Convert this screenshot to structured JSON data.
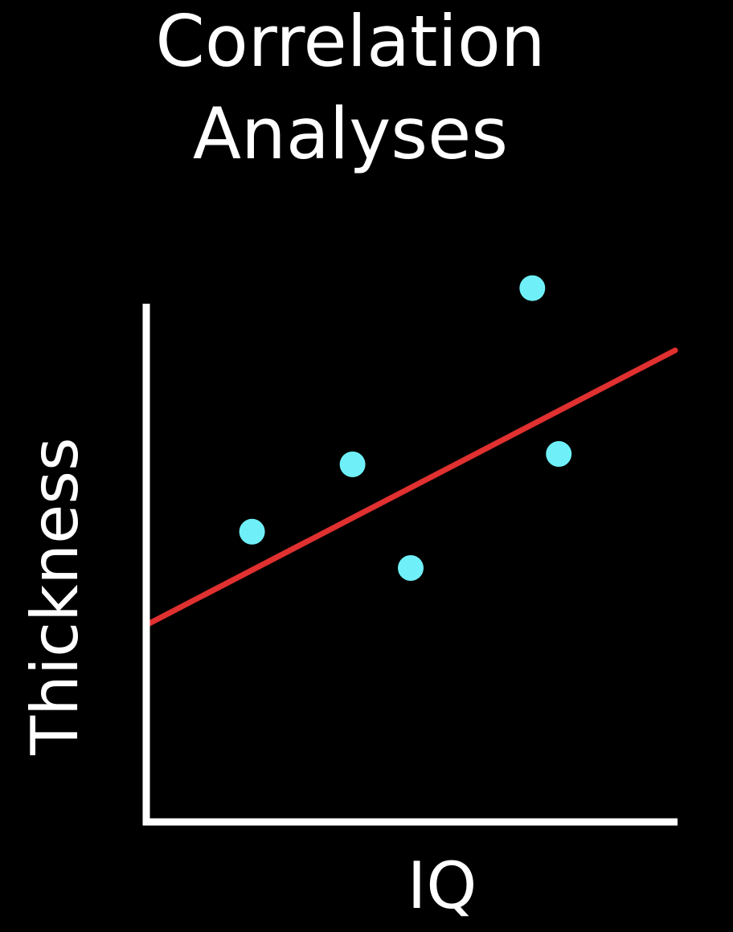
{
  "chart_data": {
    "type": "scatter",
    "title": [
      "Correlation",
      "Analyses"
    ],
    "xlabel": "IQ",
    "ylabel": "Thickness",
    "xlim": [
      0,
      10
    ],
    "ylim": [
      0,
      10
    ],
    "grid": false,
    "ticks": false,
    "series": [
      {
        "points": [
          {
            "x": 2.0,
            "y": 5.6
          },
          {
            "x": 3.9,
            "y": 6.9
          },
          {
            "x": 5.0,
            "y": 4.9
          },
          {
            "x": 7.3,
            "y": 10.3
          },
          {
            "x": 7.8,
            "y": 7.1
          }
        ]
      }
    ],
    "trendline": {
      "x": [
        0,
        10
      ],
      "y": [
        3.8,
        9.1
      ]
    },
    "colors": {
      "background": "#000000",
      "axes": "#ffffff",
      "points": "#6ff0f8",
      "trendline": "#e03030",
      "text": "#ffffff"
    }
  }
}
